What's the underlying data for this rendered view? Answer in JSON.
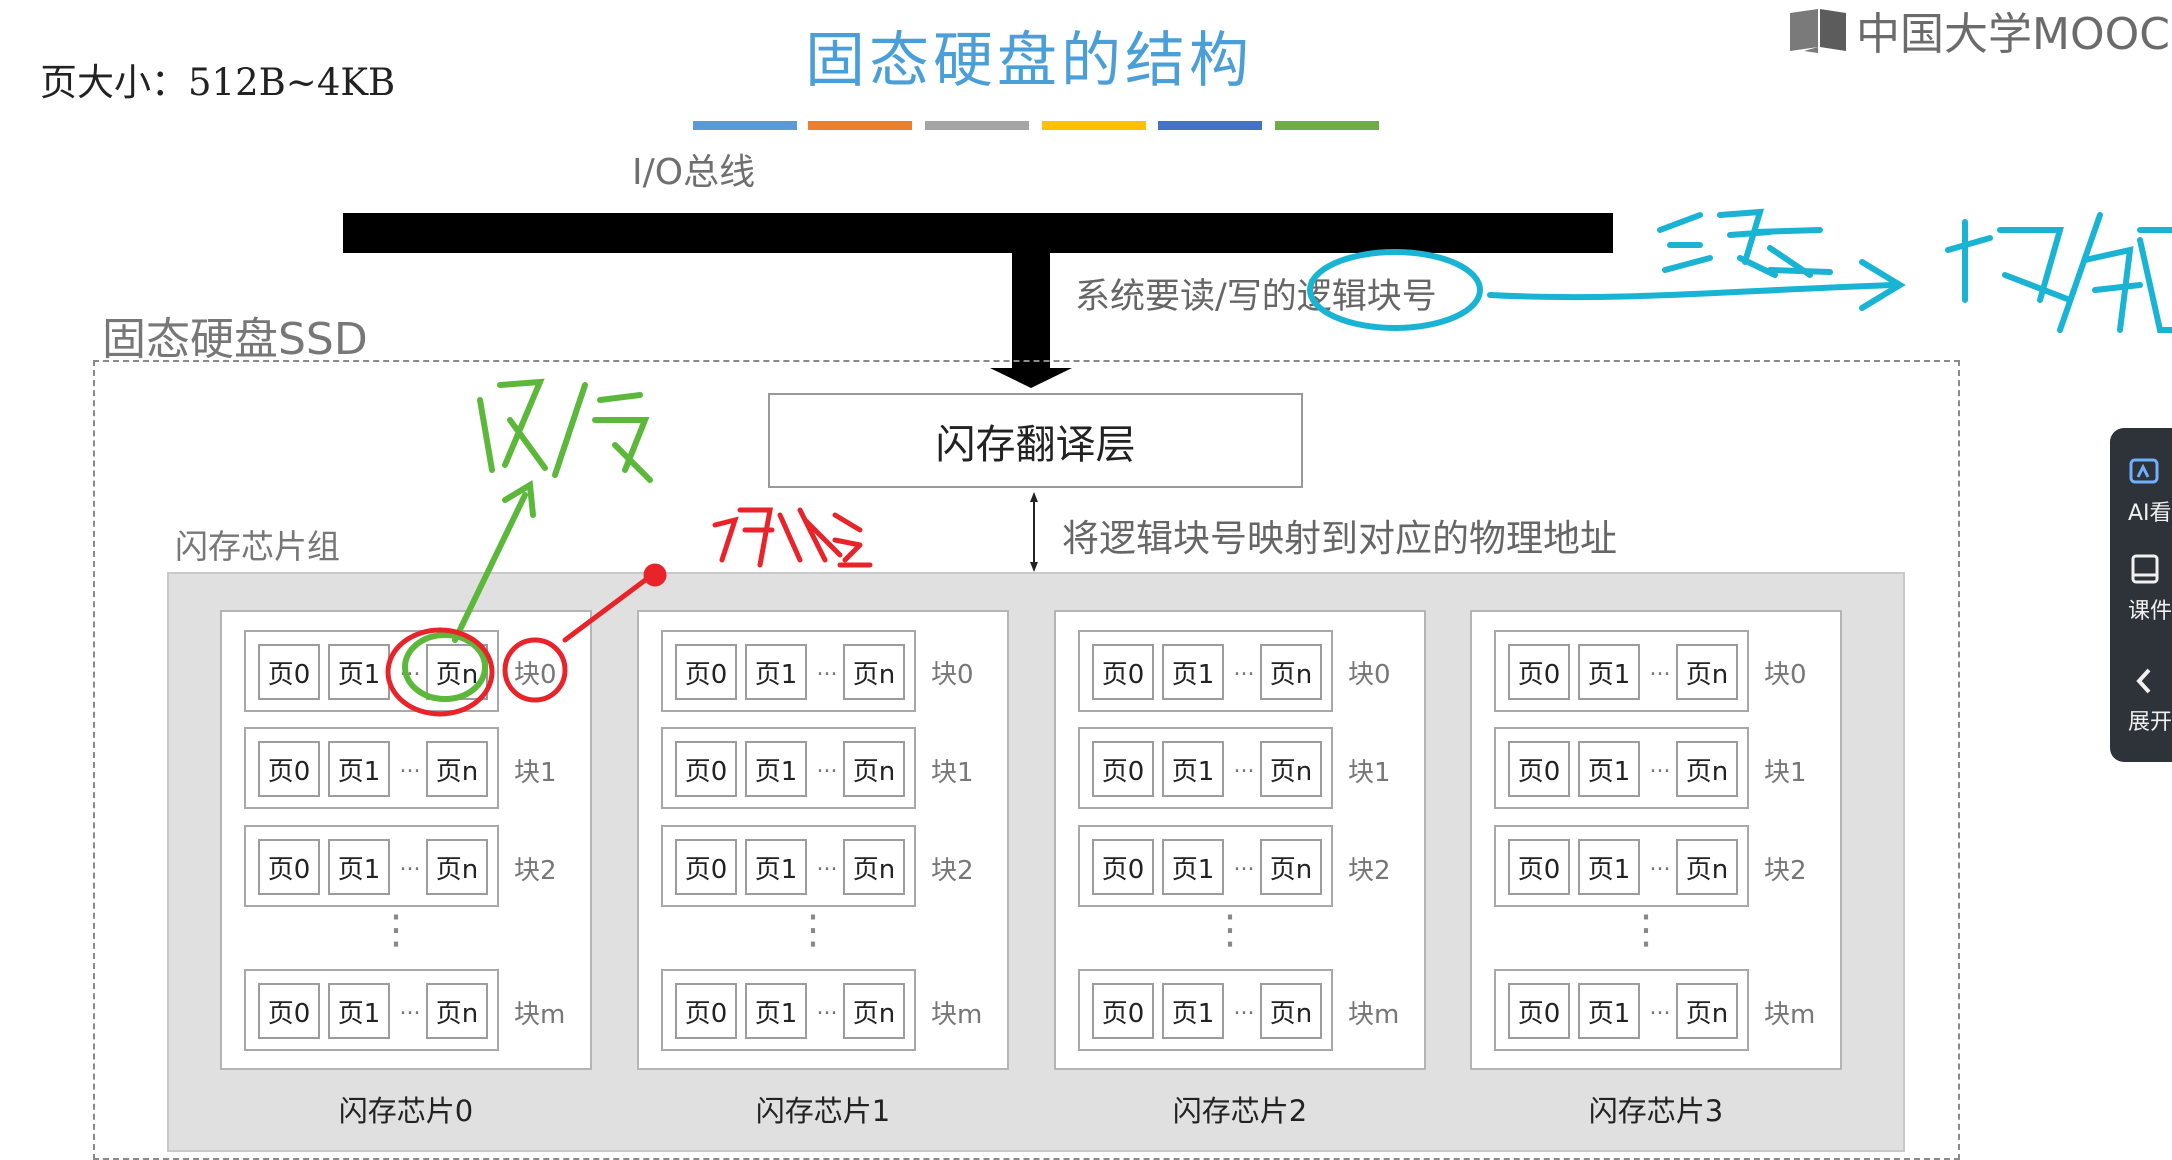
{
  "page_size_text": "页大小：512B~4KB",
  "title": "固态硬盘的结构",
  "logo": {
    "text": "中国大学MOOC"
  },
  "color_bar": [
    "#5b9bd5",
    "#ed7d31",
    "#a5a5a5",
    "#ffc000",
    "#4472c4",
    "#70ad47"
  ],
  "io_bus_label": "I/O总线",
  "request_label": "系统要读/写的逻辑块号",
  "ssd_label": "固态硬盘SSD",
  "ftl_label": "闪存翻译层",
  "mapping_label": "将逻辑块号映射到对应的物理地址",
  "chip_group_label": "闪存芯片组",
  "chips": [
    {
      "label": "闪存芯片0"
    },
    {
      "label": "闪存芯片1"
    },
    {
      "label": "闪存芯片2"
    },
    {
      "label": "闪存芯片3"
    }
  ],
  "blocks": [
    "块0",
    "块1",
    "块2",
    "块m"
  ],
  "pages": {
    "p0": "页0",
    "p1": "页1",
    "pn": "页n",
    "ellipsis": "...",
    "vdots": "⋮"
  },
  "annotations": {
    "colors": {
      "cyan": "#19b4d4",
      "green": "#5cb83a",
      "red": "#e8232a"
    }
  },
  "side_panel": {
    "items": [
      {
        "icon": "ai-icon",
        "label": "AI看"
      },
      {
        "icon": "courseware-icon",
        "label": "课件"
      },
      {
        "icon": "chevron-left-icon",
        "label": "展开"
      }
    ]
  }
}
